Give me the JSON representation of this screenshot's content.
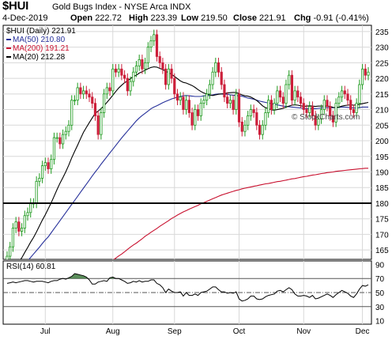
{
  "header": {
    "symbol": "$HUI",
    "name": "Gold Bugs Index - NYSE Arca  INDX",
    "date": "4-Dec-2019",
    "open_label": "Open",
    "open": "222.72",
    "high_label": "High",
    "high": "223.39",
    "low_label": "Low",
    "low": "219.50",
    "close_label": "Close",
    "close": "221.91",
    "chg_label": "Chg",
    "chg": "-0.91 (-0.41%)"
  },
  "watermark": "© StockCharts.com",
  "legend": {
    "price": "$HUI (Daily) 221.91",
    "ma50": "MA(50) 210.80",
    "ma200": "MA(200) 191.21",
    "ma20": "MA(20) 212.28"
  },
  "rsi_label": "RSI(14) 60.81",
  "colors": {
    "up": "#1e9a1e",
    "down": "#cc1f3a",
    "ma50": "#26309a",
    "ma200": "#c8102e",
    "ma20": "#000000",
    "rsi_fill": "#3e7a3e",
    "grid": "#d8d8d8"
  },
  "chart_data": [
    {
      "type": "candlestick",
      "title": "$HUI (Daily) 221.91",
      "x": "trading days, Jun 2019 - 4-Dec-2019",
      "month_ticks": [
        {
          "label": "Jul",
          "day": 13
        },
        {
          "label": "Aug",
          "day": 36
        },
        {
          "label": "Sep",
          "day": 57
        },
        {
          "label": "Oct",
          "day": 79
        },
        {
          "label": "Nov",
          "day": 101
        },
        {
          "label": "Dec",
          "day": 121
        }
      ],
      "y_ticks": [
        165,
        170,
        175,
        180,
        185,
        190,
        195,
        200,
        205,
        210,
        215,
        220,
        225,
        230,
        235
      ],
      "ylim": [
        162,
        237
      ],
      "grid": true,
      "horizontal_line": 180,
      "last_day": 123,
      "closes": [
        163,
        166,
        172,
        174,
        171,
        172,
        176,
        177,
        180,
        180,
        187,
        188,
        192,
        193,
        191,
        194,
        201,
        201,
        199,
        202,
        203,
        205,
        213,
        213,
        217,
        215,
        216,
        215,
        214,
        212,
        208,
        202,
        209,
        215,
        217,
        216,
        223,
        222,
        223,
        221,
        220,
        216,
        219,
        222,
        224,
        226,
        223,
        225,
        230,
        232,
        234,
        227,
        225,
        223,
        218,
        223,
        220,
        215,
        213,
        214,
        210,
        213,
        209,
        205,
        210,
        208,
        212,
        213,
        215,
        218,
        222,
        225,
        222,
        218,
        214,
        212,
        213,
        210,
        215,
        206,
        203,
        205,
        208,
        210,
        209,
        205,
        202,
        205,
        209,
        213,
        210,
        212,
        216,
        214,
        212,
        218,
        221,
        213,
        216,
        214,
        212,
        210,
        209,
        211,
        208,
        205,
        207,
        210,
        213,
        211,
        208,
        206,
        212,
        214,
        216,
        215,
        213,
        210,
        209,
        212,
        218,
        223,
        221,
        222
      ],
      "ma50": [
        153.3,
        154.6,
        155.8,
        156.9,
        158.0,
        159.1,
        160.3,
        161.5,
        162.6,
        163.7,
        164.8,
        165.9,
        167.1,
        168.2,
        169.2,
        170.5,
        171.8,
        173.1,
        174.4,
        175.7,
        177.0,
        178.3,
        179.6,
        180.9,
        182.2,
        183.5,
        184.8,
        186.1,
        187.4,
        188.7,
        190.0,
        191.2,
        192.5,
        193.7,
        194.9,
        196.1,
        197.3,
        198.5,
        199.7,
        200.9,
        202.0,
        203.1,
        204.2,
        205.3,
        206.4,
        207.3,
        208.1,
        208.8,
        209.5,
        210.3,
        210.8,
        211.2,
        211.7,
        212.2,
        212.6,
        213.0,
        213.4,
        213.7,
        214.0,
        214.2,
        214.4,
        214.5,
        214.4,
        214.3,
        214.2,
        214.2,
        214.2,
        214.4,
        214.5,
        214.5,
        214.7,
        214.9,
        215.0,
        215.0,
        214.9,
        214.9,
        214.7,
        214.6,
        214.5,
        214.4,
        214.3,
        214.0,
        213.7,
        213.5,
        213.3,
        213.0,
        212.7,
        212.5,
        212.3,
        212.1,
        211.9,
        211.7,
        211.5,
        211.3,
        211.1,
        211.0,
        210.9,
        210.8,
        210.7,
        210.6,
        210.5,
        210.4,
        210.3,
        210.3,
        210.3,
        210.3,
        210.4,
        210.5,
        210.6,
        210.6,
        210.6,
        210.6,
        210.6,
        210.7,
        210.8,
        210.8,
        210.7,
        210.6,
        210.5,
        210.5,
        210.6,
        210.8,
        210.8,
        210.8
      ],
      "ma200": [
        145.3,
        145.5,
        145.7,
        145.9,
        146.1,
        146.3,
        146.6,
        146.9,
        147.2,
        147.5,
        147.8,
        148.2,
        148.6,
        149.0,
        149.3,
        149.7,
        150.2,
        150.6,
        151.1,
        151.6,
        152.1,
        152.7,
        153.2,
        153.8,
        154.3,
        154.9,
        155.5,
        156.1,
        156.7,
        157.3,
        157.9,
        158.5,
        159.2,
        159.8,
        160.5,
        161.1,
        161.7,
        162.4,
        163.1,
        163.7,
        164.4,
        165.2,
        165.9,
        166.6,
        167.2,
        167.9,
        168.6,
        169.4,
        170.0,
        170.7,
        171.3,
        171.9,
        172.6,
        173.2,
        173.8,
        174.4,
        175.1,
        175.6,
        176.2,
        176.7,
        177.2,
        177.6,
        178.1,
        178.5,
        178.9,
        179.3,
        179.8,
        180.2,
        180.6,
        181.0,
        181.4,
        181.8,
        182.2,
        182.6,
        182.9,
        183.2,
        183.5,
        183.8,
        184.1,
        184.3,
        184.6,
        184.8,
        185.0,
        185.2,
        185.4,
        185.6,
        185.8,
        186.0,
        186.2,
        186.3,
        186.5,
        186.7,
        186.9,
        187.0,
        187.2,
        187.4,
        187.6,
        187.8,
        187.9,
        188.1,
        188.3,
        188.5,
        188.6,
        188.8,
        189.0,
        189.1,
        189.3,
        189.5,
        189.6,
        189.8,
        189.9,
        190.0,
        190.2,
        190.3,
        190.4,
        190.5,
        190.6,
        190.7,
        190.8,
        190.9,
        191.0,
        191.1,
        191.2,
        191.2
      ],
      "ma20": [
        154.5,
        156.4,
        158.3,
        159.8,
        161.2,
        162.5,
        164.2,
        165.8,
        167.5,
        169.0,
        170.8,
        172.7,
        174.6,
        176.3,
        178.2,
        180.1,
        182.2,
        184.4,
        186.4,
        188.2,
        190.1,
        192.2,
        194.5,
        196.6,
        198.6,
        200.7,
        202.7,
        204.3,
        205.8,
        207.3,
        208.8,
        209.5,
        210.3,
        211.2,
        212.3,
        213.4,
        214.6,
        215.8,
        216.9,
        217.8,
        218.6,
        219.2,
        219.9,
        220.6,
        221.0,
        221.7,
        222.1,
        222.6,
        223.1,
        223.5,
        223.7,
        223.6,
        223.2,
        222.8,
        222.3,
        221.8,
        221.3,
        220.6,
        219.9,
        219.2,
        218.7,
        218.5,
        218.1,
        217.7,
        217.1,
        216.4,
        215.8,
        215.3,
        215.0,
        214.7,
        214.5,
        214.7,
        214.9,
        215.0,
        215.1,
        215.3,
        215.4,
        215.5,
        215.5,
        215.1,
        214.7,
        214.4,
        214.3,
        214.0,
        213.5,
        212.9,
        212.1,
        211.2,
        210.6,
        210.3,
        209.9,
        209.8,
        210.0,
        210.2,
        210.4,
        210.8,
        211.1,
        211.4,
        211.5,
        211.4,
        211.2,
        211.0,
        211.1,
        211.2,
        211.1,
        211.0,
        211.1,
        211.1,
        211.1,
        211.1,
        211.0,
        210.7,
        210.6,
        210.8,
        211.1,
        211.3,
        211.4,
        211.5,
        211.4,
        211.5,
        211.7,
        211.9,
        212.1,
        212.3
      ]
    },
    {
      "type": "line",
      "title": "RSI(14) 60.81",
      "y_ticks": [
        10,
        30,
        50,
        70,
        90
      ],
      "ylim": [
        5,
        95
      ],
      "reference_lines": [
        30,
        50,
        70
      ],
      "fill_above": 70,
      "values": [
        63,
        64,
        65,
        64,
        65,
        66,
        67,
        67,
        66,
        65,
        66,
        66,
        66,
        65,
        64,
        66,
        67,
        67,
        69,
        70,
        69,
        71,
        73,
        77,
        76,
        75,
        74,
        72,
        68,
        62,
        62,
        65,
        66,
        67,
        66,
        71,
        72,
        70,
        70,
        68,
        66,
        63,
        64,
        66,
        65,
        67,
        65,
        66,
        66,
        68,
        68,
        63,
        61,
        57,
        50,
        55,
        52,
        50,
        50,
        51,
        45,
        50,
        46,
        46,
        48,
        46,
        50,
        51,
        52,
        55,
        58,
        58,
        54,
        51,
        51,
        49,
        50,
        49,
        51,
        41,
        38,
        39,
        41,
        45,
        45,
        41,
        40,
        41,
        44,
        46,
        47,
        48,
        52,
        53,
        51,
        54,
        57,
        54,
        48,
        45,
        45,
        46,
        45,
        43,
        46,
        41,
        42,
        44,
        46,
        48,
        46,
        43,
        47,
        50,
        53,
        51,
        49,
        45,
        43,
        48,
        55,
        60,
        59,
        61
      ]
    }
  ]
}
